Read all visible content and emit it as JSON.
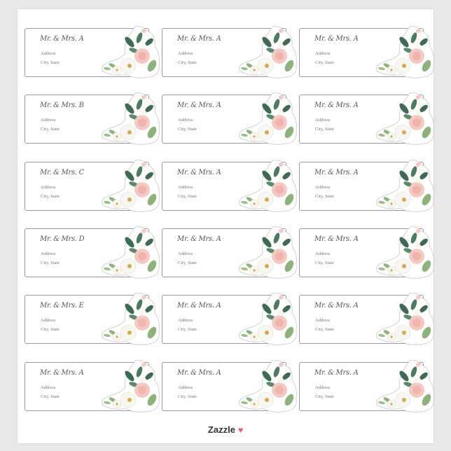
{
  "labels": [
    {
      "name": "Mr. & Mrs. A",
      "address": "Address",
      "city": "City, State"
    },
    {
      "name": "Mr. & Mrs. A",
      "address": "Address",
      "city": "City, State"
    },
    {
      "name": "Mr. & Mrs. A",
      "address": "Address",
      "city": "City, State"
    },
    {
      "name": "Mr. & Mrs. B",
      "address": "Address",
      "city": "City, State"
    },
    {
      "name": "Mr. & Mrs. A",
      "address": "Address",
      "city": "City, State"
    },
    {
      "name": "Mr. & Mrs. A",
      "address": "Address",
      "city": "City, State"
    },
    {
      "name": "Mr. & Mrs. C",
      "address": "Address",
      "city": "City, State"
    },
    {
      "name": "Mr. & Mrs. A",
      "address": "Address",
      "city": "City, State"
    },
    {
      "name": "Mr. & Mrs. A",
      "address": "Address",
      "city": "City, State"
    },
    {
      "name": "Mr. & Mrs. D",
      "address": "Address",
      "city": "City, State"
    },
    {
      "name": "Mr. & Mrs. A",
      "address": "Address",
      "city": "City, State"
    },
    {
      "name": "Mr. & Mrs. A",
      "address": "Address",
      "city": "City, State"
    },
    {
      "name": "Mr. & Mrs. E",
      "address": "Address",
      "city": "City, State"
    },
    {
      "name": "Mr. & Mrs. A",
      "address": "Address",
      "city": "City, State"
    },
    {
      "name": "Mr. & Mrs. A",
      "address": "Address",
      "city": "City, State"
    },
    {
      "name": "Mr. & Mrs. A",
      "address": "Address",
      "city": "City, State"
    },
    {
      "name": "Mr. & Mrs. A",
      "address": "Address",
      "city": "City, State"
    },
    {
      "name": "Mr. & Mrs. A",
      "address": "Address",
      "city": "City, State"
    }
  ],
  "footer": {
    "logo": "Zazzle",
    "heart_icon": "heart-icon",
    "heart_color": "#e85a5a"
  },
  "colors": {
    "leaf_dark": "#3f6b55",
    "leaf_light": "#8db37a",
    "rose": "#f4c9c2",
    "white_flower": "#f7f6f0"
  }
}
